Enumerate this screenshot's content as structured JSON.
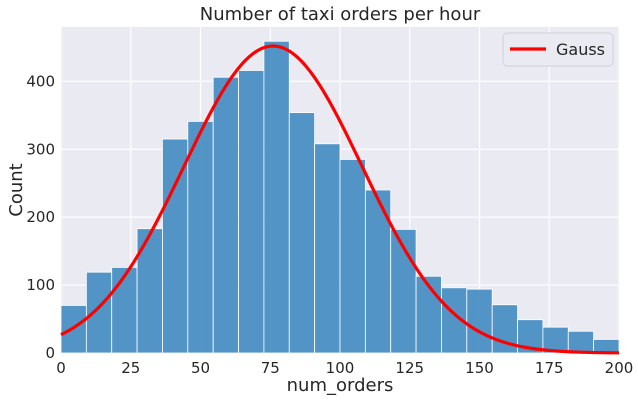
{
  "chart_data": {
    "type": "bar",
    "subtype": "histogram",
    "title": "Number of taxi orders per hour",
    "xlabel": "num_orders",
    "ylabel": "Count",
    "xlim": [
      0,
      200
    ],
    "ylim": [
      0,
      480
    ],
    "xticks": [
      "0",
      "25",
      "50",
      "75",
      "100",
      "125",
      "150",
      "175",
      "200"
    ],
    "yticks": [
      "0",
      "100",
      "200",
      "300",
      "400"
    ],
    "grid": true,
    "bin_width": 9.09,
    "bins": [
      {
        "x0": 0.0,
        "x1": 9.09,
        "count": 70
      },
      {
        "x0": 9.09,
        "x1": 18.18,
        "count": 119
      },
      {
        "x0": 18.18,
        "x1": 27.27,
        "count": 126
      },
      {
        "x0": 27.27,
        "x1": 36.36,
        "count": 183
      },
      {
        "x0": 36.36,
        "x1": 45.45,
        "count": 315
      },
      {
        "x0": 45.45,
        "x1": 54.55,
        "count": 341
      },
      {
        "x0": 54.55,
        "x1": 63.64,
        "count": 406
      },
      {
        "x0": 63.64,
        "x1": 72.73,
        "count": 416
      },
      {
        "x0": 72.73,
        "x1": 81.82,
        "count": 459
      },
      {
        "x0": 81.82,
        "x1": 90.91,
        "count": 354
      },
      {
        "x0": 90.91,
        "x1": 100.0,
        "count": 308
      },
      {
        "x0": 100.0,
        "x1": 109.09,
        "count": 285
      },
      {
        "x0": 109.09,
        "x1": 118.18,
        "count": 240
      },
      {
        "x0": 118.18,
        "x1": 127.27,
        "count": 182
      },
      {
        "x0": 127.27,
        "x1": 136.36,
        "count": 113
      },
      {
        "x0": 136.36,
        "x1": 145.45,
        "count": 96
      },
      {
        "x0": 145.45,
        "x1": 154.55,
        "count": 94
      },
      {
        "x0": 154.55,
        "x1": 163.64,
        "count": 71
      },
      {
        "x0": 163.64,
        "x1": 172.73,
        "count": 49
      },
      {
        "x0": 172.73,
        "x1": 181.82,
        "count": 38
      },
      {
        "x0": 181.82,
        "x1": 190.91,
        "count": 32
      },
      {
        "x0": 190.91,
        "x1": 200.0,
        "count": 20
      }
    ],
    "bar_color": "#4a8fc3",
    "curve": {
      "name": "Gauss",
      "type": "line",
      "color": "#ff0000",
      "mean": 76,
      "std": 32,
      "peak": 452
    },
    "legend": {
      "position": "top-right",
      "entries": [
        "Gauss"
      ]
    },
    "background_color": "#eaeaf2",
    "grid_color": "#ffffff"
  }
}
